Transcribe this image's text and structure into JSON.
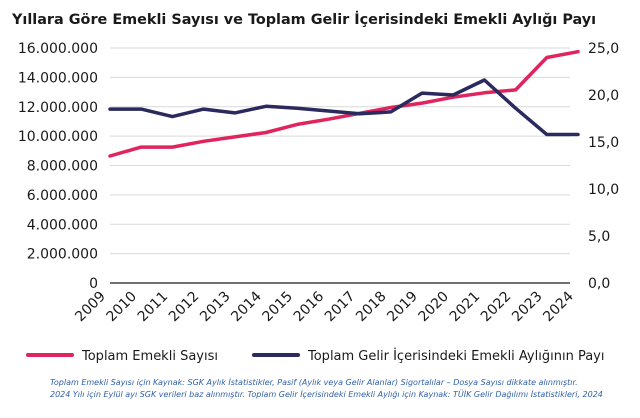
{
  "chart_data": {
    "type": "line",
    "title": "Yıllara Göre Emekli Sayısı ve Toplam Gelir İçerisindeki Emekli Aylığı Payı",
    "x": [
      "2009",
      "2010",
      "2011",
      "2012",
      "2013",
      "2014",
      "2015",
      "2016",
      "2017",
      "2018",
      "2019",
      "2020",
      "2021",
      "2022",
      "2023",
      "2024"
    ],
    "x_tick_labels": [
      "2009",
      "2010",
      "2011",
      "2012",
      "2013",
      "2014",
      "2015",
      "2016",
      "2017",
      "2018",
      "2019",
      "2020",
      "2021",
      "2022",
      "2023",
      "2024"
    ],
    "y_left": {
      "ylim": [
        0,
        16000000
      ],
      "tick_labels": [
        "0",
        "2.000.000",
        "4.000.000",
        "6.000.000",
        "8.000.000",
        "10.000.000",
        "12.000.000",
        "14.000.000",
        "16.000.000"
      ],
      "tick_values": [
        0,
        2000000,
        4000000,
        6000000,
        8000000,
        10000000,
        12000000,
        14000000,
        16000000
      ]
    },
    "y_right": {
      "ylim": [
        0,
        25
      ],
      "tick_labels": [
        "0,0",
        "5,0",
        "10,0",
        "15,0",
        "20,0",
        "25,0"
      ],
      "tick_values": [
        0,
        5,
        10,
        15,
        20,
        25
      ]
    },
    "grid": true,
    "legend_position": "bottom",
    "series": [
      {
        "name": "Toplam Emekli Sayısı",
        "axis": "left",
        "color": "#e0245e",
        "values": [
          8650000,
          9250000,
          9250000,
          9650000,
          9950000,
          10250000,
          10800000,
          11150000,
          11550000,
          11950000,
          12250000,
          12650000,
          12950000,
          13150000,
          15350000,
          15750000
        ]
      },
      {
        "name": "Toplam Gelir İçerisindeki Emekli Aylığının Payı",
        "axis": "right",
        "color": "#2a2a5e",
        "values": [
          18.5,
          18.5,
          17.7,
          18.5,
          18.1,
          18.8,
          18.6,
          18.3,
          18.0,
          18.2,
          20.2,
          20.0,
          21.6,
          18.6,
          15.8,
          15.8
        ]
      }
    ]
  },
  "footnote": {
    "line1": "Toplam Emekli Sayısı için Kaynak: SGK Aylık İstatistikler, Pasif (Aylık veya Gelir Alanlar) Sigortalılar – Dosya Sayısı dikkate alınmıştır.",
    "line2": "2024 Yılı için Eylül ayı SGK verileri baz alınmıştır. Toplam Gelir İçerisindeki Emekli Aylığı için Kaynak: TÜİK Gelir Dağılımı İstatistikleri, 2024"
  }
}
